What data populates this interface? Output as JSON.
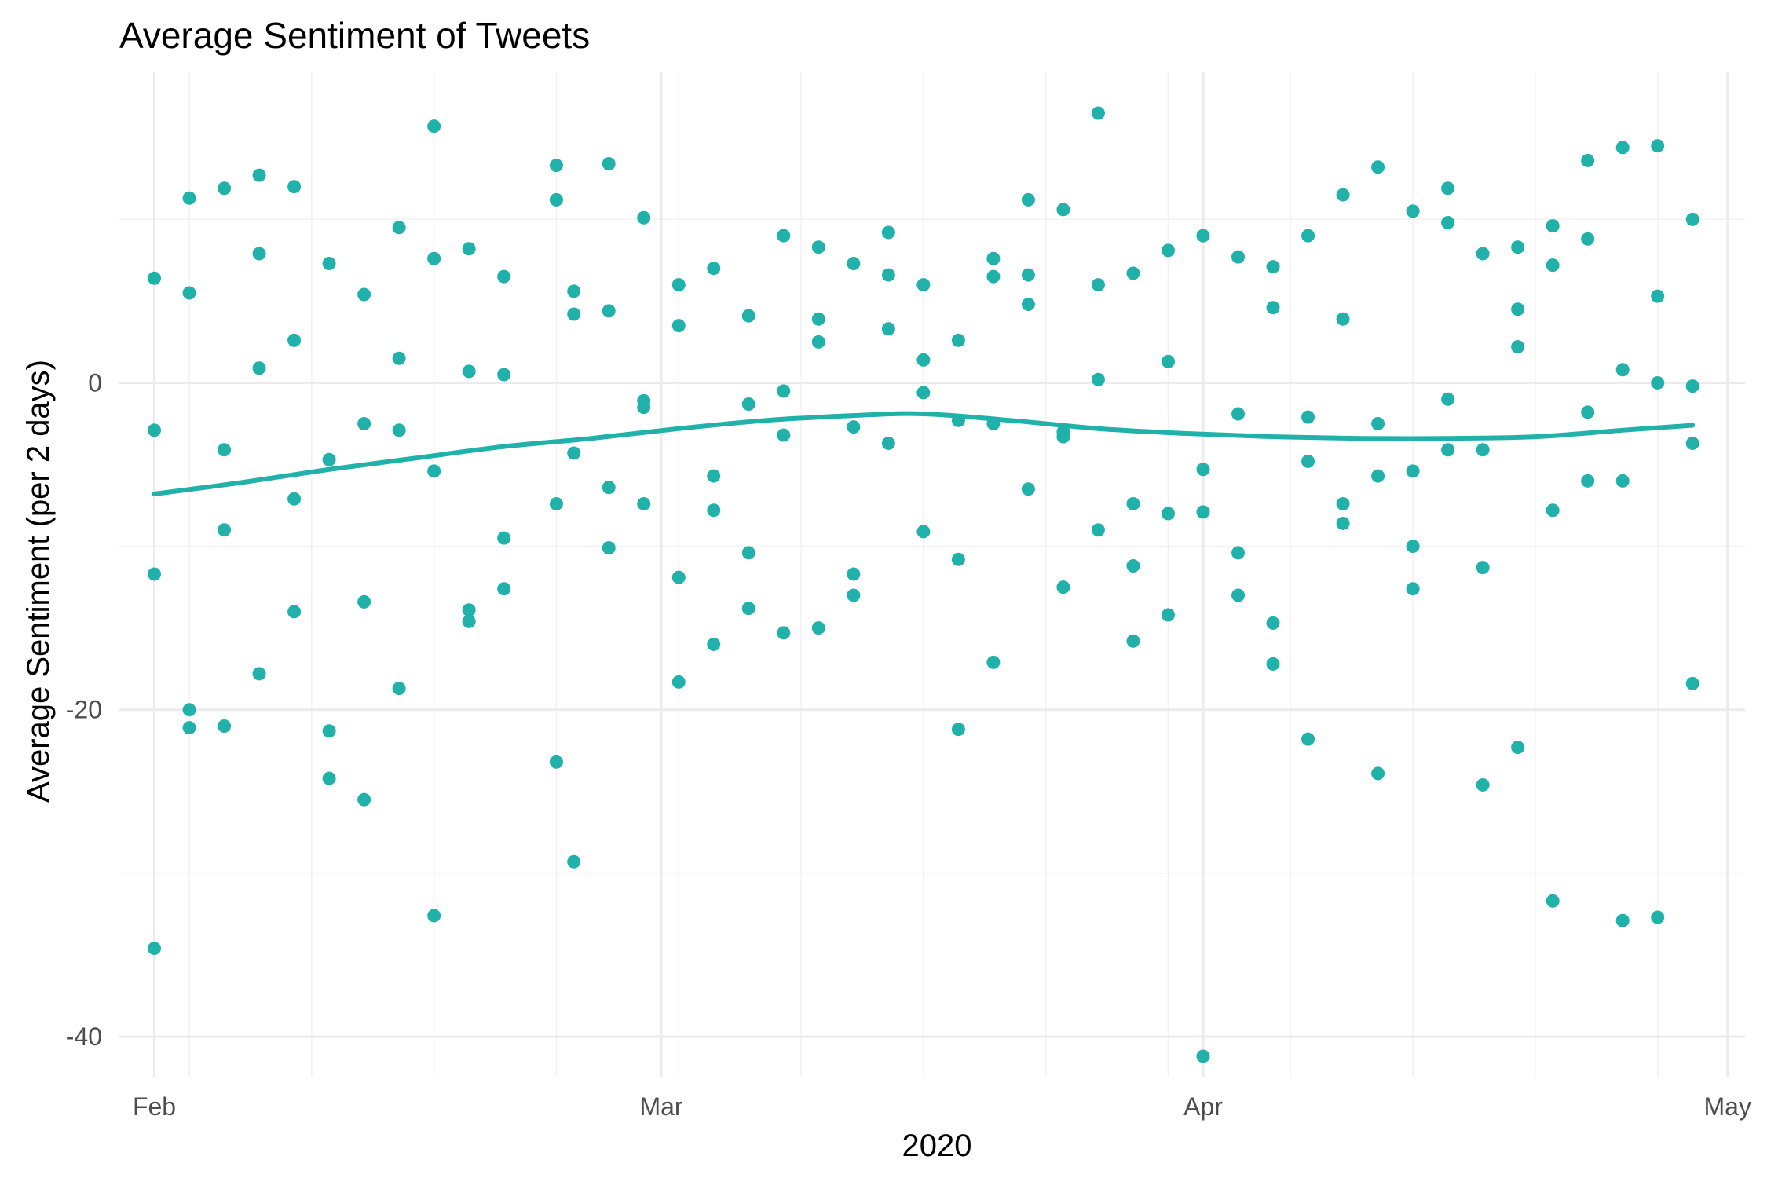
{
  "chart_data": {
    "type": "scatter",
    "title": "Average Sentiment of Tweets",
    "xlabel": "2020",
    "ylabel": "Average Sentiment (per 2 days)",
    "x_tick_labels": [
      "Feb",
      "Mar",
      "Apr",
      "May"
    ],
    "x_tick_values": [
      "2020-02-01",
      "2020-03-01",
      "2020-04-01",
      "2020-05-01"
    ],
    "y_tick_labels": [
      "-40",
      "-20",
      "0"
    ],
    "y_tick_values": [
      -40,
      -20,
      0
    ],
    "xlim": [
      "2020-01-30",
      "2020-05-02"
    ],
    "ylim": [
      -42.5,
      19
    ],
    "grid": true,
    "legend": "none",
    "point_color": "#20b2aa",
    "line_color": "#20b2aa",
    "points": [
      {
        "x": "2020-02-01",
        "y": 6.4
      },
      {
        "x": "2020-02-01",
        "y": -2.9
      },
      {
        "x": "2020-02-01",
        "y": -11.7
      },
      {
        "x": "2020-02-01",
        "y": -34.6
      },
      {
        "x": "2020-02-03",
        "y": 11.3
      },
      {
        "x": "2020-02-03",
        "y": 5.5
      },
      {
        "x": "2020-02-03",
        "y": -20.0
      },
      {
        "x": "2020-02-03",
        "y": -21.1
      },
      {
        "x": "2020-02-05",
        "y": 11.9
      },
      {
        "x": "2020-02-05",
        "y": -4.1
      },
      {
        "x": "2020-02-05",
        "y": -9.0
      },
      {
        "x": "2020-02-05",
        "y": -21.0
      },
      {
        "x": "2020-02-07",
        "y": 12.7
      },
      {
        "x": "2020-02-07",
        "y": 7.9
      },
      {
        "x": "2020-02-07",
        "y": 0.9
      },
      {
        "x": "2020-02-07",
        "y": -17.8
      },
      {
        "x": "2020-02-09",
        "y": 12.0
      },
      {
        "x": "2020-02-09",
        "y": 2.6
      },
      {
        "x": "2020-02-09",
        "y": -7.1
      },
      {
        "x": "2020-02-09",
        "y": -14.0
      },
      {
        "x": "2020-02-11",
        "y": 7.3
      },
      {
        "x": "2020-02-11",
        "y": -4.7
      },
      {
        "x": "2020-02-11",
        "y": -21.3
      },
      {
        "x": "2020-02-11",
        "y": -24.2
      },
      {
        "x": "2020-02-13",
        "y": 5.4
      },
      {
        "x": "2020-02-13",
        "y": -2.5
      },
      {
        "x": "2020-02-13",
        "y": -13.4
      },
      {
        "x": "2020-02-13",
        "y": -25.5
      },
      {
        "x": "2020-02-15",
        "y": 9.5
      },
      {
        "x": "2020-02-15",
        "y": 1.5
      },
      {
        "x": "2020-02-15",
        "y": -2.9
      },
      {
        "x": "2020-02-15",
        "y": -18.7
      },
      {
        "x": "2020-02-17",
        "y": 15.7
      },
      {
        "x": "2020-02-17",
        "y": 7.6
      },
      {
        "x": "2020-02-17",
        "y": -5.4
      },
      {
        "x": "2020-02-17",
        "y": -32.6
      },
      {
        "x": "2020-02-19",
        "y": 8.2
      },
      {
        "x": "2020-02-19",
        "y": 0.7
      },
      {
        "x": "2020-02-19",
        "y": -13.9
      },
      {
        "x": "2020-02-19",
        "y": -14.6
      },
      {
        "x": "2020-02-21",
        "y": 6.5
      },
      {
        "x": "2020-02-21",
        "y": 0.5
      },
      {
        "x": "2020-02-21",
        "y": -9.5
      },
      {
        "x": "2020-02-21",
        "y": -12.6
      },
      {
        "x": "2020-02-24",
        "y": 13.3
      },
      {
        "x": "2020-02-24",
        "y": 11.2
      },
      {
        "x": "2020-02-24",
        "y": -7.4
      },
      {
        "x": "2020-02-24",
        "y": -23.2
      },
      {
        "x": "2020-02-25",
        "y": 5.6
      },
      {
        "x": "2020-02-25",
        "y": 4.2
      },
      {
        "x": "2020-02-25",
        "y": -4.3
      },
      {
        "x": "2020-02-25",
        "y": -29.3
      },
      {
        "x": "2020-02-27",
        "y": 13.4
      },
      {
        "x": "2020-02-27",
        "y": 4.4
      },
      {
        "x": "2020-02-27",
        "y": -6.4
      },
      {
        "x": "2020-02-27",
        "y": -10.1
      },
      {
        "x": "2020-02-29",
        "y": 10.1
      },
      {
        "x": "2020-02-29",
        "y": -1.1
      },
      {
        "x": "2020-02-29",
        "y": -1.5
      },
      {
        "x": "2020-02-29",
        "y": -7.4
      },
      {
        "x": "2020-03-02",
        "y": 6.0
      },
      {
        "x": "2020-03-02",
        "y": 3.5
      },
      {
        "x": "2020-03-02",
        "y": -11.9
      },
      {
        "x": "2020-03-02",
        "y": -18.3
      },
      {
        "x": "2020-03-04",
        "y": 7.0
      },
      {
        "x": "2020-03-04",
        "y": -5.7
      },
      {
        "x": "2020-03-04",
        "y": -7.8
      },
      {
        "x": "2020-03-04",
        "y": -16.0
      },
      {
        "x": "2020-03-06",
        "y": 4.1
      },
      {
        "x": "2020-03-06",
        "y": -1.3
      },
      {
        "x": "2020-03-06",
        "y": -10.4
      },
      {
        "x": "2020-03-06",
        "y": -13.8
      },
      {
        "x": "2020-03-08",
        "y": 9.0
      },
      {
        "x": "2020-03-08",
        "y": -0.5
      },
      {
        "x": "2020-03-08",
        "y": -3.2
      },
      {
        "x": "2020-03-08",
        "y": -15.3
      },
      {
        "x": "2020-03-10",
        "y": 8.3
      },
      {
        "x": "2020-03-10",
        "y": 3.9
      },
      {
        "x": "2020-03-10",
        "y": 2.5
      },
      {
        "x": "2020-03-10",
        "y": -15.0
      },
      {
        "x": "2020-03-12",
        "y": 7.3
      },
      {
        "x": "2020-03-12",
        "y": -2.7
      },
      {
        "x": "2020-03-12",
        "y": -11.7
      },
      {
        "x": "2020-03-12",
        "y": -13.0
      },
      {
        "x": "2020-03-14",
        "y": 9.2
      },
      {
        "x": "2020-03-14",
        "y": 6.6
      },
      {
        "x": "2020-03-14",
        "y": 3.3
      },
      {
        "x": "2020-03-14",
        "y": -3.7
      },
      {
        "x": "2020-03-16",
        "y": 6.0
      },
      {
        "x": "2020-03-16",
        "y": 1.4
      },
      {
        "x": "2020-03-16",
        "y": -0.6
      },
      {
        "x": "2020-03-16",
        "y": -9.1
      },
      {
        "x": "2020-03-18",
        "y": 2.6
      },
      {
        "x": "2020-03-18",
        "y": -2.3
      },
      {
        "x": "2020-03-18",
        "y": -10.8
      },
      {
        "x": "2020-03-18",
        "y": -21.2
      },
      {
        "x": "2020-03-20",
        "y": 7.6
      },
      {
        "x": "2020-03-20",
        "y": 6.5
      },
      {
        "x": "2020-03-20",
        "y": -2.5
      },
      {
        "x": "2020-03-20",
        "y": -17.1
      },
      {
        "x": "2020-03-22",
        "y": 11.2
      },
      {
        "x": "2020-03-22",
        "y": 6.6
      },
      {
        "x": "2020-03-22",
        "y": 4.8
      },
      {
        "x": "2020-03-22",
        "y": -6.5
      },
      {
        "x": "2020-03-24",
        "y": 10.6
      },
      {
        "x": "2020-03-24",
        "y": -3.0
      },
      {
        "x": "2020-03-24",
        "y": -3.3
      },
      {
        "x": "2020-03-24",
        "y": -12.5
      },
      {
        "x": "2020-03-26",
        "y": 16.5
      },
      {
        "x": "2020-03-26",
        "y": 6.0
      },
      {
        "x": "2020-03-26",
        "y": 0.2
      },
      {
        "x": "2020-03-26",
        "y": -9.0
      },
      {
        "x": "2020-03-28",
        "y": 6.7
      },
      {
        "x": "2020-03-28",
        "y": -7.4
      },
      {
        "x": "2020-03-28",
        "y": -11.2
      },
      {
        "x": "2020-03-28",
        "y": -15.8
      },
      {
        "x": "2020-03-30",
        "y": 8.1
      },
      {
        "x": "2020-03-30",
        "y": 1.3
      },
      {
        "x": "2020-03-30",
        "y": -8.0
      },
      {
        "x": "2020-03-30",
        "y": -14.2
      },
      {
        "x": "2020-04-01",
        "y": 9.0
      },
      {
        "x": "2020-04-01",
        "y": -5.3
      },
      {
        "x": "2020-04-01",
        "y": -7.9
      },
      {
        "x": "2020-04-01",
        "y": -41.2
      },
      {
        "x": "2020-04-03",
        "y": 7.7
      },
      {
        "x": "2020-04-03",
        "y": -1.9
      },
      {
        "x": "2020-04-03",
        "y": -10.4
      },
      {
        "x": "2020-04-03",
        "y": -13.0
      },
      {
        "x": "2020-04-05",
        "y": 7.1
      },
      {
        "x": "2020-04-05",
        "y": 4.6
      },
      {
        "x": "2020-04-05",
        "y": -14.7
      },
      {
        "x": "2020-04-05",
        "y": -17.2
      },
      {
        "x": "2020-04-07",
        "y": 9.0
      },
      {
        "x": "2020-04-07",
        "y": -2.1
      },
      {
        "x": "2020-04-07",
        "y": -4.8
      },
      {
        "x": "2020-04-07",
        "y": -21.8
      },
      {
        "x": "2020-04-09",
        "y": 11.5
      },
      {
        "x": "2020-04-09",
        "y": 3.9
      },
      {
        "x": "2020-04-09",
        "y": -7.4
      },
      {
        "x": "2020-04-09",
        "y": -8.6
      },
      {
        "x": "2020-04-11",
        "y": 13.2
      },
      {
        "x": "2020-04-11",
        "y": -2.5
      },
      {
        "x": "2020-04-11",
        "y": -5.7
      },
      {
        "x": "2020-04-11",
        "y": -23.9
      },
      {
        "x": "2020-04-13",
        "y": 10.5
      },
      {
        "x": "2020-04-13",
        "y": -5.4
      },
      {
        "x": "2020-04-13",
        "y": -10.0
      },
      {
        "x": "2020-04-13",
        "y": -12.6
      },
      {
        "x": "2020-04-15",
        "y": 11.9
      },
      {
        "x": "2020-04-15",
        "y": 9.8
      },
      {
        "x": "2020-04-15",
        "y": -1.0
      },
      {
        "x": "2020-04-15",
        "y": -4.1
      },
      {
        "x": "2020-04-17",
        "y": 7.9
      },
      {
        "x": "2020-04-17",
        "y": -4.1
      },
      {
        "x": "2020-04-17",
        "y": -11.3
      },
      {
        "x": "2020-04-17",
        "y": -24.6
      },
      {
        "x": "2020-04-19",
        "y": 8.3
      },
      {
        "x": "2020-04-19",
        "y": 4.5
      },
      {
        "x": "2020-04-19",
        "y": 2.2
      },
      {
        "x": "2020-04-19",
        "y": -22.3
      },
      {
        "x": "2020-04-21",
        "y": 9.6
      },
      {
        "x": "2020-04-21",
        "y": 7.2
      },
      {
        "x": "2020-04-21",
        "y": -7.8
      },
      {
        "x": "2020-04-21",
        "y": -31.7
      },
      {
        "x": "2020-04-23",
        "y": 13.6
      },
      {
        "x": "2020-04-23",
        "y": 8.8
      },
      {
        "x": "2020-04-23",
        "y": -1.8
      },
      {
        "x": "2020-04-23",
        "y": -6.0
      },
      {
        "x": "2020-04-25",
        "y": 14.4
      },
      {
        "x": "2020-04-25",
        "y": 0.8
      },
      {
        "x": "2020-04-25",
        "y": -6.0
      },
      {
        "x": "2020-04-25",
        "y": -32.9
      },
      {
        "x": "2020-04-27",
        "y": 14.5
      },
      {
        "x": "2020-04-27",
        "y": 5.3
      },
      {
        "x": "2020-04-27",
        "y": 0.0
      },
      {
        "x": "2020-04-27",
        "y": -32.7
      },
      {
        "x": "2020-04-29",
        "y": 10.0
      },
      {
        "x": "2020-04-29",
        "y": -0.2
      },
      {
        "x": "2020-04-29",
        "y": -3.7
      },
      {
        "x": "2020-04-29",
        "y": -18.4
      }
    ],
    "smooth_line": [
      {
        "x": "2020-02-01",
        "y": -6.8
      },
      {
        "x": "2020-02-06",
        "y": -6.1
      },
      {
        "x": "2020-02-11",
        "y": -5.3
      },
      {
        "x": "2020-02-16",
        "y": -4.6
      },
      {
        "x": "2020-02-21",
        "y": -3.9
      },
      {
        "x": "2020-02-26",
        "y": -3.4
      },
      {
        "x": "2020-03-02",
        "y": -2.8
      },
      {
        "x": "2020-03-07",
        "y": -2.3
      },
      {
        "x": "2020-03-12",
        "y": -2.0
      },
      {
        "x": "2020-03-16",
        "y": -1.9
      },
      {
        "x": "2020-03-21",
        "y": -2.3
      },
      {
        "x": "2020-03-26",
        "y": -2.8
      },
      {
        "x": "2020-03-31",
        "y": -3.1
      },
      {
        "x": "2020-04-05",
        "y": -3.3
      },
      {
        "x": "2020-04-10",
        "y": -3.4
      },
      {
        "x": "2020-04-15",
        "y": -3.4
      },
      {
        "x": "2020-04-20",
        "y": -3.3
      },
      {
        "x": "2020-04-25",
        "y": -2.9
      },
      {
        "x": "2020-04-29",
        "y": -2.6
      }
    ]
  }
}
